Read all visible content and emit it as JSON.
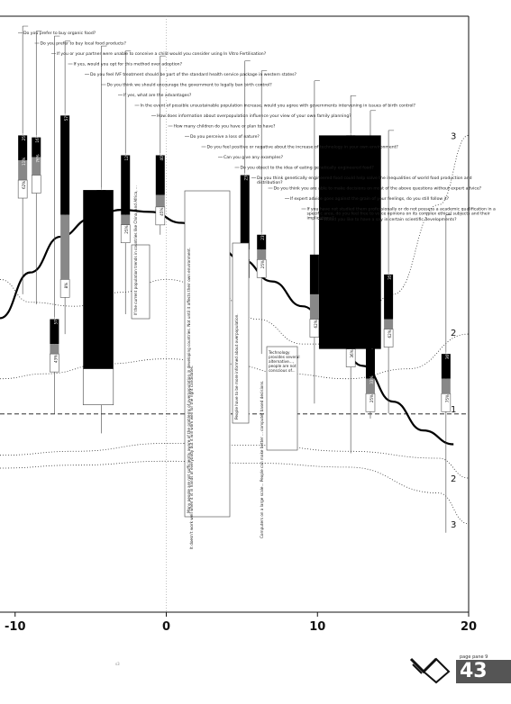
{
  "page": {
    "number": "43",
    "sub": "page pane 9",
    "footer_mark": "s3"
  },
  "chart_data": {
    "type": "line",
    "xlabel": "",
    "ylabel": "",
    "xlim": [
      -11,
      20
    ],
    "ylim": [
      -0.5,
      5.5
    ],
    "ticks": {
      "x": [
        {
          "v": -10,
          "label": "-10"
        },
        {
          "v": 0,
          "label": "0"
        },
        {
          "v": 10,
          "label": "10"
        },
        {
          "v": 20,
          "label": "20"
        }
      ],
      "levels": [
        {
          "label": "3",
          "y": 4.3,
          "row": "upper"
        },
        {
          "label": "2",
          "y": 2.32,
          "row": "upper"
        },
        {
          "label": "1",
          "y": 1.55,
          "row": "upper"
        },
        {
          "label": "2",
          "y": 0.85,
          "row": "lower"
        },
        {
          "label": "3",
          "y": 0.39,
          "row": "lower"
        }
      ]
    },
    "series": [
      {
        "style": "solid-thick",
        "x": [
          -11,
          -9,
          -7,
          -5,
          -3,
          -1,
          1,
          3,
          5,
          7,
          9,
          11,
          13,
          15,
          17,
          19
        ],
        "y": [
          2.46,
          2.92,
          3.28,
          3.46,
          3.55,
          3.53,
          3.42,
          3.25,
          3.05,
          2.83,
          2.58,
          2.32,
          1.98,
          1.62,
          1.33,
          1.19
        ]
      },
      {
        "style": "dotted-upper",
        "x": [
          -11,
          -9,
          -6,
          -3,
          0,
          3,
          6,
          9,
          12,
          15,
          18,
          20
        ],
        "y": [
          2.85,
          2.62,
          2.58,
          2.72,
          2.85,
          2.75,
          2.45,
          2.2,
          2.2,
          2.7,
          3.6,
          4.3
        ]
      },
      {
        "style": "dotted-upper-2",
        "x": [
          -11,
          -8,
          -4,
          0,
          4,
          8,
          12,
          16,
          20
        ],
        "y": [
          1.85,
          1.9,
          2.0,
          2.05,
          2.0,
          1.9,
          1.85,
          1.95,
          2.3
        ]
      },
      {
        "style": "dotted-lower",
        "x": [
          -11,
          -6,
          0,
          6,
          12,
          18,
          20
        ],
        "y": [
          1.08,
          1.12,
          1.2,
          1.18,
          1.12,
          1.05,
          0.85
        ]
      },
      {
        "style": "dotted-lower-2",
        "x": [
          -11,
          -6,
          0,
          6,
          12,
          18,
          20
        ],
        "y": [
          0.95,
          0.98,
          1.02,
          1.0,
          0.96,
          0.7,
          0.39
        ]
      }
    ],
    "questions": [
      {
        "x": -9.5,
        "text": "Do you prefer to buy organic food?",
        "ymin": 2.7,
        "ymax": 5.4,
        "bar": [
          4.3,
          4.05,
          3.85
        ],
        "labels": [
          "25%",
          "11%",
          "62%"
        ]
      },
      {
        "x": -8.6,
        "text": "Do you prefer to buy local food products?",
        "ymin": 2.6,
        "ymax": 5.35,
        "bar": [
          4.28,
          4.08,
          3.9
        ],
        "labels": [
          "16%",
          "76%",
          ""
        ]
      },
      {
        "x": -7.4,
        "text": "If you or your partner were unable to conceive a child would you consider using In Vitro Fertilisation?",
        "ymin": 1.5,
        "ymax": 5.3,
        "bar": [
          2.45,
          2.2,
          2.1
        ],
        "labels": [
          "57%",
          "",
          "43%"
        ]
      },
      {
        "x": -6.7,
        "text": "If yes, would you opt for this method over adoption?",
        "ymin": 2.3,
        "ymax": 5.25,
        "bar": [
          4.5,
          3.5,
          2.85
        ],
        "labels": [
          "57%",
          "",
          "8%"
        ]
      },
      {
        "x": -4.3,
        "text": "Do you feel IVF treatment should be part of the standard health service package in western states?",
        "ymin": 1.3,
        "ymax": 5.2,
        "bar": [
          3.75,
          2.4,
          1.95
        ],
        "labels": [
          "54%",
          "",
          "33%"
        ]
      },
      {
        "x": -2.7,
        "text": "Do you think we should encourage the government to legally ban birth control?",
        "ymin": 2.5,
        "ymax": 5.15,
        "bar": [
          4.1,
          3.5,
          3.4
        ],
        "labels": [
          "12%",
          "",
          "25%"
        ]
      },
      {
        "x": -0.4,
        "text": "If yes, what are the advantages?",
        "ymin": 3.3,
        "ymax": 5.1,
        "bar": [
          4.1,
          3.7,
          3.58
        ],
        "labels": [
          "40%",
          "",
          "45%"
        ]
      },
      {
        "x": 5.2,
        "text": "In the event of possible unsustainable population increase, would you agree with governments intervening in issues of birth control?",
        "ymin": 2.8,
        "ymax": 5.05,
        "bar": [
          3.9,
          3.15,
          3.05
        ],
        "labels": [
          "23%",
          "",
          "27%"
        ]
      },
      {
        "x": 6.3,
        "text": "How does information about overpopulation influence your view of your own family planning?",
        "ymin": 2.1,
        "ymax": 4.95,
        "bar": [
          3.3,
          3.15,
          3.05
        ],
        "labels": [
          "23%",
          "",
          "25%"
        ]
      },
      {
        "x": 9.8,
        "text": "Do you prefer to buy foods that are naturally grown?",
        "ymin": 1.6,
        "ymax": 4.85,
        "bar": [
          3.1,
          2.7,
          2.45
        ],
        "labels": [
          "",
          "",
          "62%"
        ]
      },
      {
        "x": 12.2,
        "text": "Do you believe your children's cells are ready to be engineered?",
        "ymin": 1.1,
        "ymax": 4.7,
        "bar": [
          4.3,
          2.3,
          2.15
        ],
        "labels": [
          "59%",
          "",
          "36%"
        ]
      },
      {
        "x": 13.5,
        "text": "Do you think you are able to make decisions on most of the above questions without expert advice?",
        "ymin": 1.45,
        "ymax": 4.55,
        "bar": [
          2.2,
          1.85,
          1.7
        ],
        "labels": [
          "42%",
          "33%",
          "25%"
        ]
      },
      {
        "x": 14.7,
        "text": "If expert advice goes against the grain of your feelings, do you still follow it?",
        "ymin": 1.5,
        "ymax": 4.35,
        "bar": [
          2.9,
          2.45,
          2.35
        ],
        "labels": [
          "35%",
          "",
          "62%"
        ]
      },
      {
        "x": 18.5,
        "text": "Would you like to have a say in certain scientific developments?",
        "ymin": 0.3,
        "ymax": 3.5,
        "bar": [
          2.1,
          1.85,
          1.7
        ],
        "labels": [
          "36%",
          "",
          "75%"
        ]
      }
    ],
    "annotations": [
      "Do you prefer to buy organic food?",
      "Do you prefer to buy local food products?",
      "If you or your partner were unable to conceive a child would you consider using In Vitro Fertilisation?",
      "If yes, would you opt for this method over adoption?",
      "Do you feel IVF treatment should be part of the standard health service package in western states?",
      "Do you think we should encourage the government to legally ban birth control?",
      "If yes, what are the advantages?",
      "In the event of possible unsustainable population increase, would you agree with governments intervening in issues of birth control?",
      "How does information about overpopulation influence your view of your own family planning?",
      "How many children do you have or plan to have?",
      "Do you perceive a loss of nature?",
      "Do you feel positive or negative about the increase of technology in your own environment?",
      "Can you give any examples?",
      "Do you object to the idea of eating genetically engineered food?",
      "Do you think genetically engineered food could help solve the inequalities of world food production and distribution?",
      "Do you think you are able to make decisions on most of the above questions without expert advice?",
      "If expert advice goes against the grain of your feelings, do you still follow it?",
      "If you have not studied them professionally or do not possess a academic qualification in a specific area, do you feel free to voice opinions on its complex ethical subjects and their implications?",
      "Would you like to have a say in certain scientific developments?"
    ],
    "box_notes": [
      "Many people are not sufficiently aware of the problems of overpopulation in developing countries. Not until it affects their own environment.",
      "If the current population trends in countries like China, and Africa, ...",
      "People have to be more informed about overpopulation.",
      "Technology provides several alternative..., people are not conscious of..."
    ],
    "lower_notes": [
      "It doesn't work well when it is in hands of everybody but it will work well for the right candidates.",
      "Computers on a large scale... People can make better ... computer based decisions."
    ]
  }
}
